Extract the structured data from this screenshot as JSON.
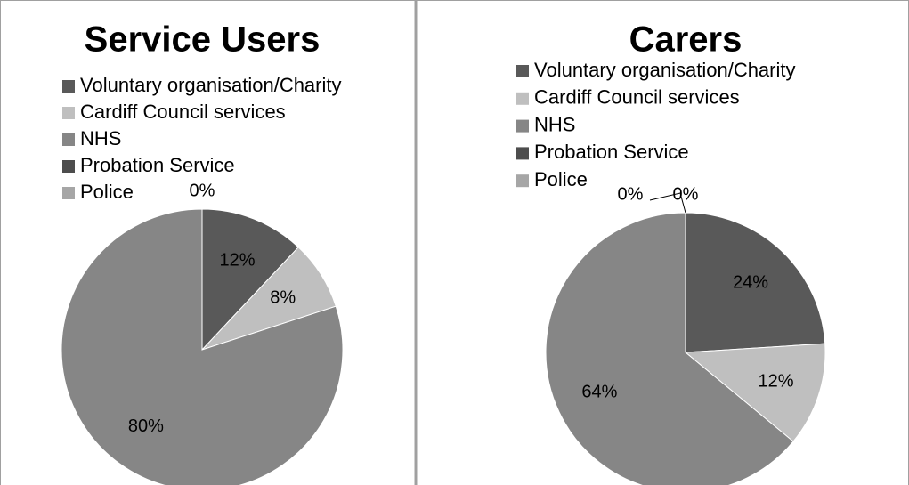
{
  "chart_data": [
    {
      "type": "pie",
      "title": "Service Users",
      "categories": [
        "Voluntary organisation/Charity",
        "Cardiff Council services",
        "NHS",
        "Probation Service",
        "Police"
      ],
      "values": [
        12,
        8,
        80,
        0,
        0
      ],
      "value_labels": [
        "12%",
        "8%",
        "80%",
        "0%",
        null
      ],
      "colors": [
        "#595959",
        "#bfbfbf",
        "#868686",
        "#4d4d4d",
        "#a6a6a6"
      ]
    },
    {
      "type": "pie",
      "title": "Carers",
      "categories": [
        "Voluntary organisation/Charity",
        "Cardiff Council services",
        "NHS",
        "Probation Service",
        "Police"
      ],
      "values": [
        24,
        12,
        64,
        0,
        0
      ],
      "value_labels": [
        "24%",
        "12%",
        "64%",
        "0%",
        "0%"
      ],
      "colors": [
        "#595959",
        "#bfbfbf",
        "#868686",
        "#4d4d4d",
        "#a6a6a6"
      ]
    }
  ]
}
